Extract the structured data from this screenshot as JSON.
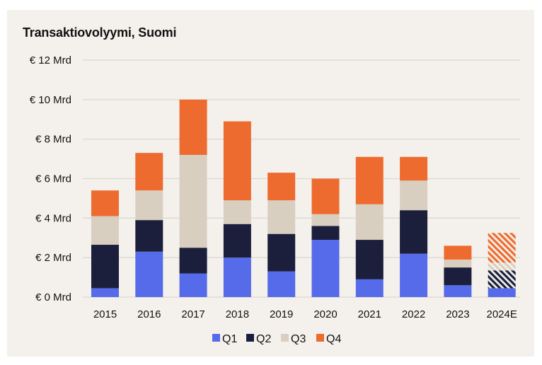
{
  "chart_data": {
    "type": "bar",
    "stacked": true,
    "title": "Transaktiovolyymi, Suomi",
    "xlabel": "",
    "ylabel": "",
    "categories": [
      "2015",
      "2016",
      "2017",
      "2018",
      "2019",
      "2020",
      "2021",
      "2022",
      "2023",
      "2024E"
    ],
    "estimate_categories": [
      "2024E"
    ],
    "ylim": [
      0,
      12
    ],
    "yticks": [
      0,
      2,
      4,
      6,
      8,
      10,
      12
    ],
    "ytick_labels": [
      "€ 0 Mrd",
      "€ 2 Mrd",
      "€ 4 Mrd",
      "€ 6 Mrd",
      "€ 8 Mrd",
      "€ 10 Mrd",
      "€ 12 Mrd"
    ],
    "grid": true,
    "legend_position": "bottom-center",
    "series": [
      {
        "name": "Q1",
        "color": "#566be9",
        "values": [
          0.45,
          2.3,
          1.2,
          2.0,
          1.3,
          2.9,
          0.9,
          2.2,
          0.6,
          0.45
        ]
      },
      {
        "name": "Q2",
        "color": "#1b1f3b",
        "values": [
          2.2,
          1.6,
          1.3,
          1.7,
          1.9,
          0.7,
          2.0,
          2.2,
          0.9,
          0.9
        ]
      },
      {
        "name": "Q3",
        "color": "#d9cfc1",
        "values": [
          1.45,
          1.5,
          4.7,
          1.2,
          1.7,
          0.6,
          1.8,
          1.5,
          0.4,
          0.4
        ]
      },
      {
        "name": "Q4",
        "color": "#ee6b2f",
        "values": [
          1.3,
          1.9,
          2.8,
          4.0,
          1.4,
          1.8,
          2.4,
          1.2,
          0.7,
          1.5
        ]
      }
    ]
  },
  "colors": {
    "background": "#f4f1ec",
    "gridline": "#dcd7d0"
  }
}
